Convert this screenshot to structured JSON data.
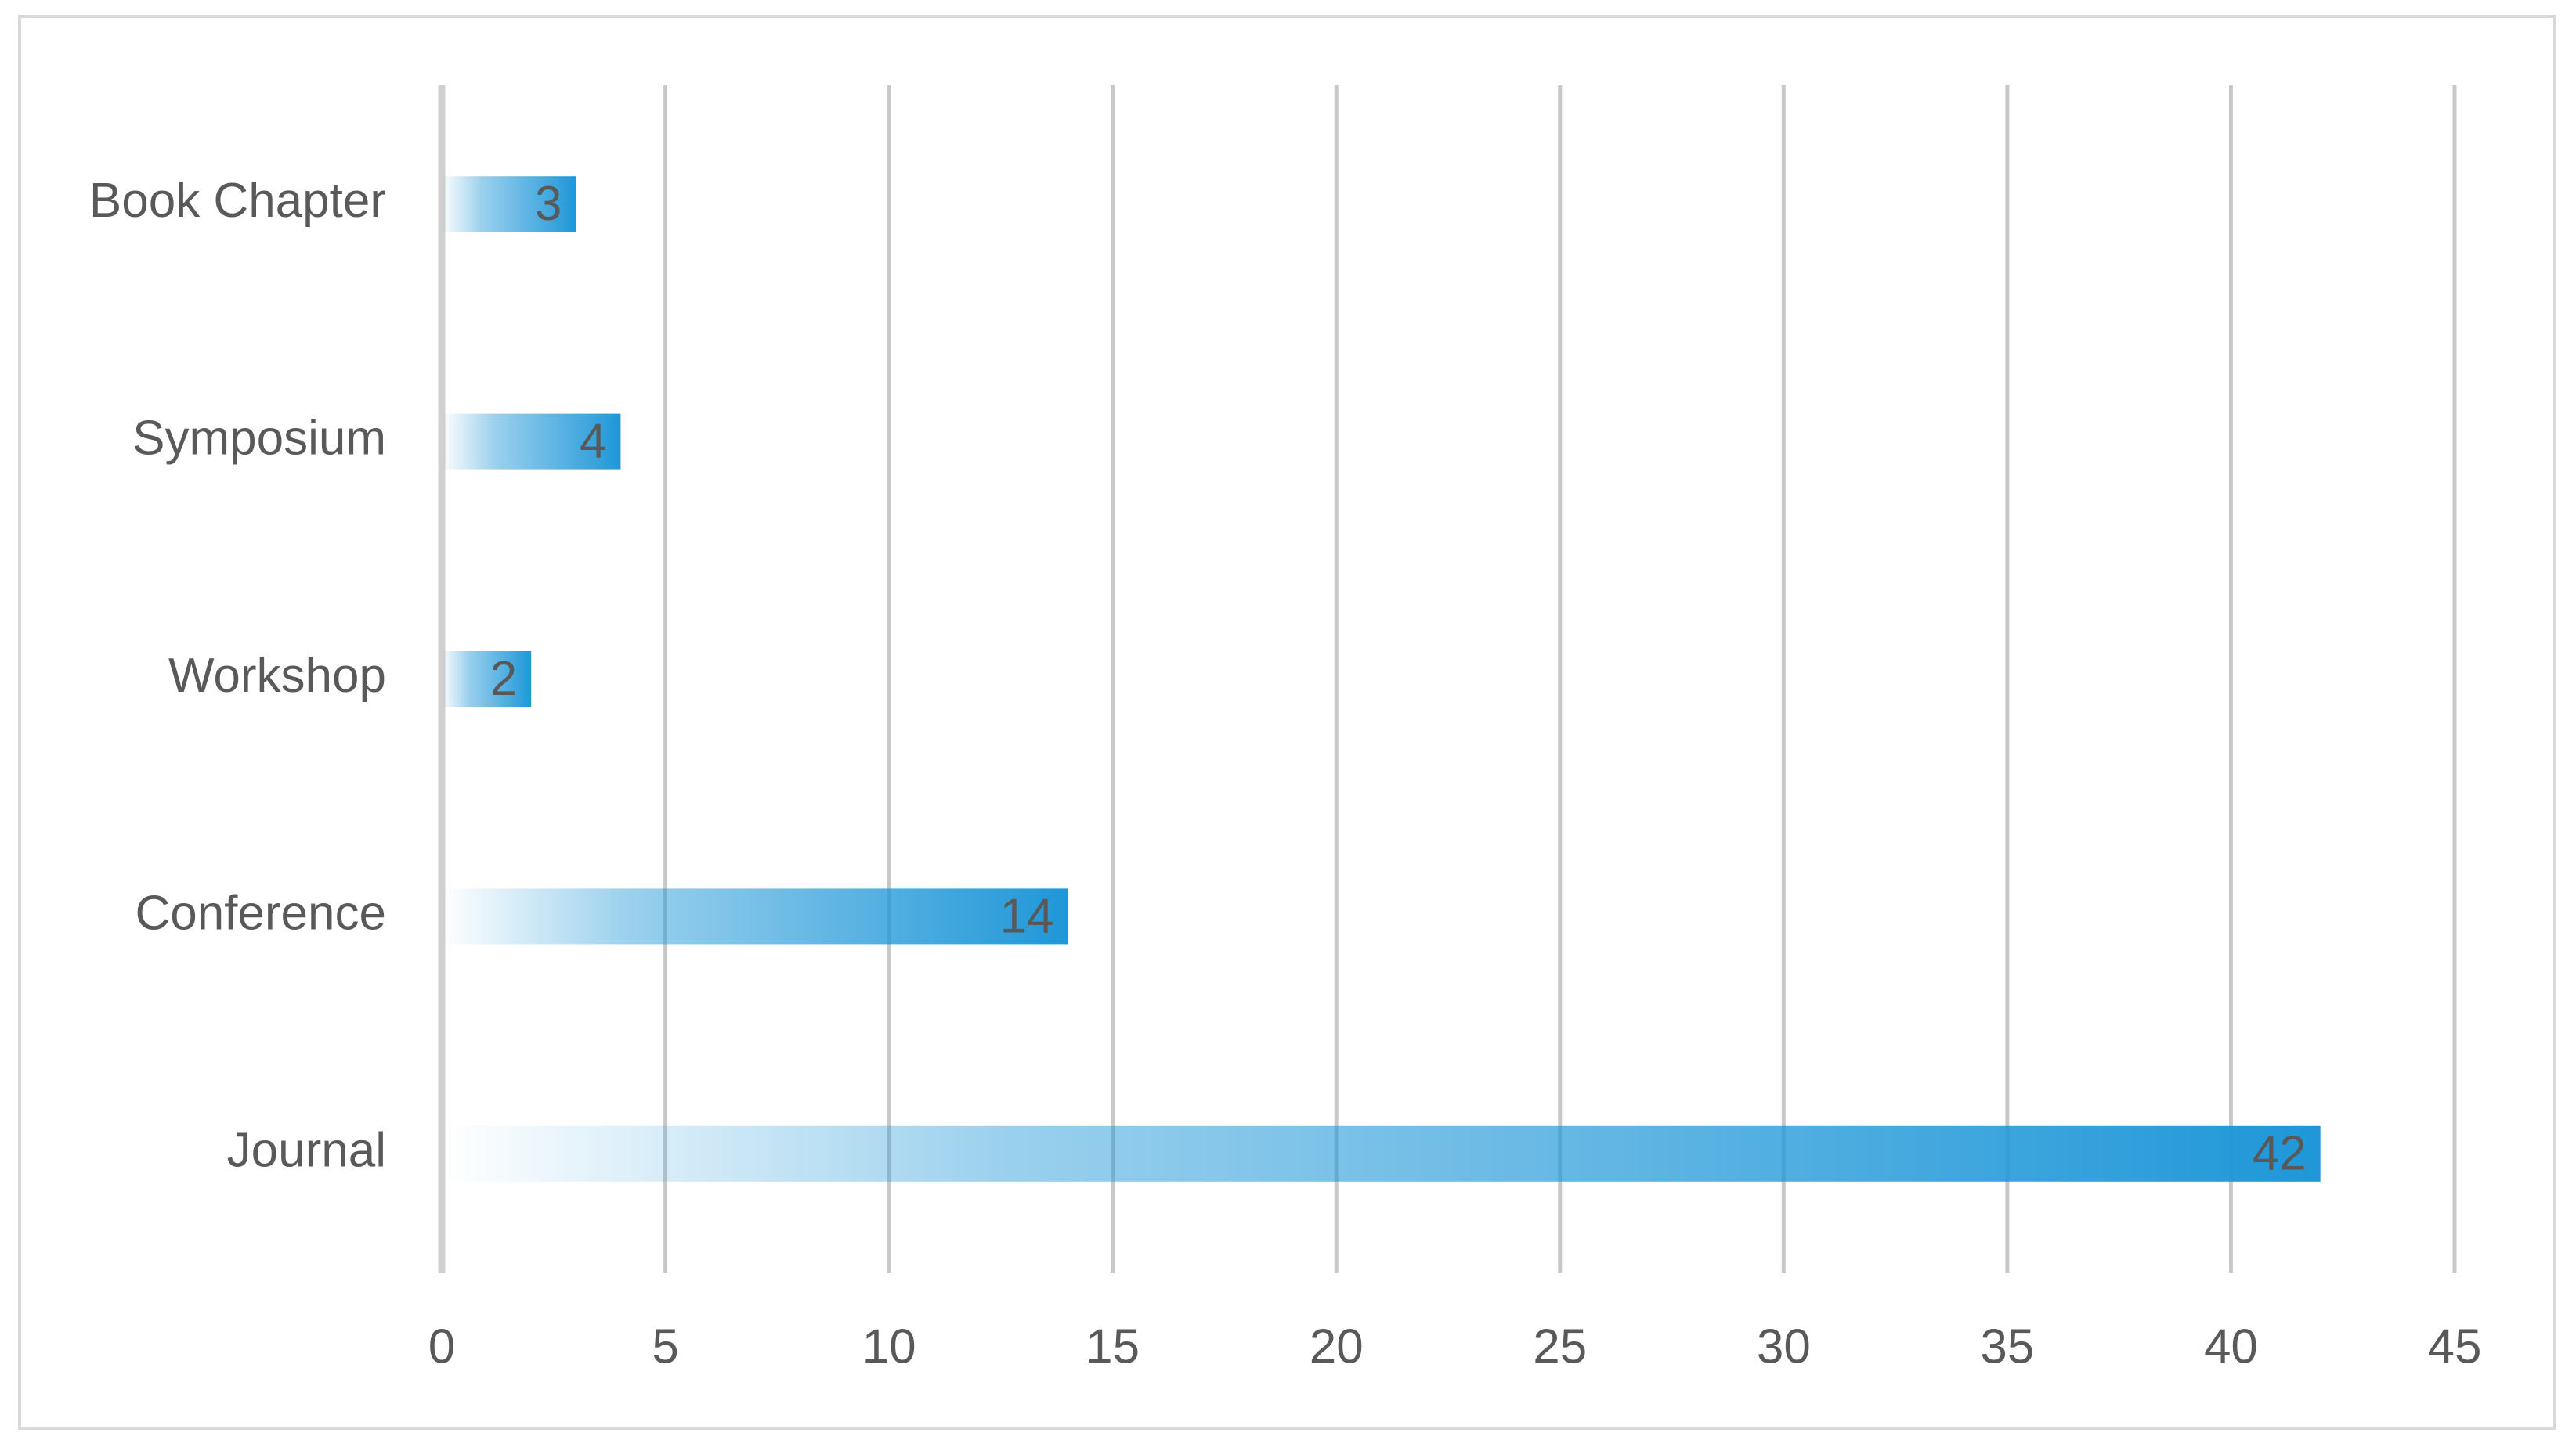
{
  "chart_data": {
    "type": "bar",
    "orientation": "horizontal",
    "categories": [
      "Book Chapter",
      "Symposium",
      "Workshop",
      "Conference",
      "Journal"
    ],
    "values": [
      3,
      4,
      2,
      14,
      42
    ],
    "color": "#1f97d8",
    "xlim": [
      0,
      45
    ],
    "xticks": [
      0,
      5,
      10,
      15,
      20,
      25,
      30,
      35,
      40,
      45
    ],
    "grid": true
  }
}
